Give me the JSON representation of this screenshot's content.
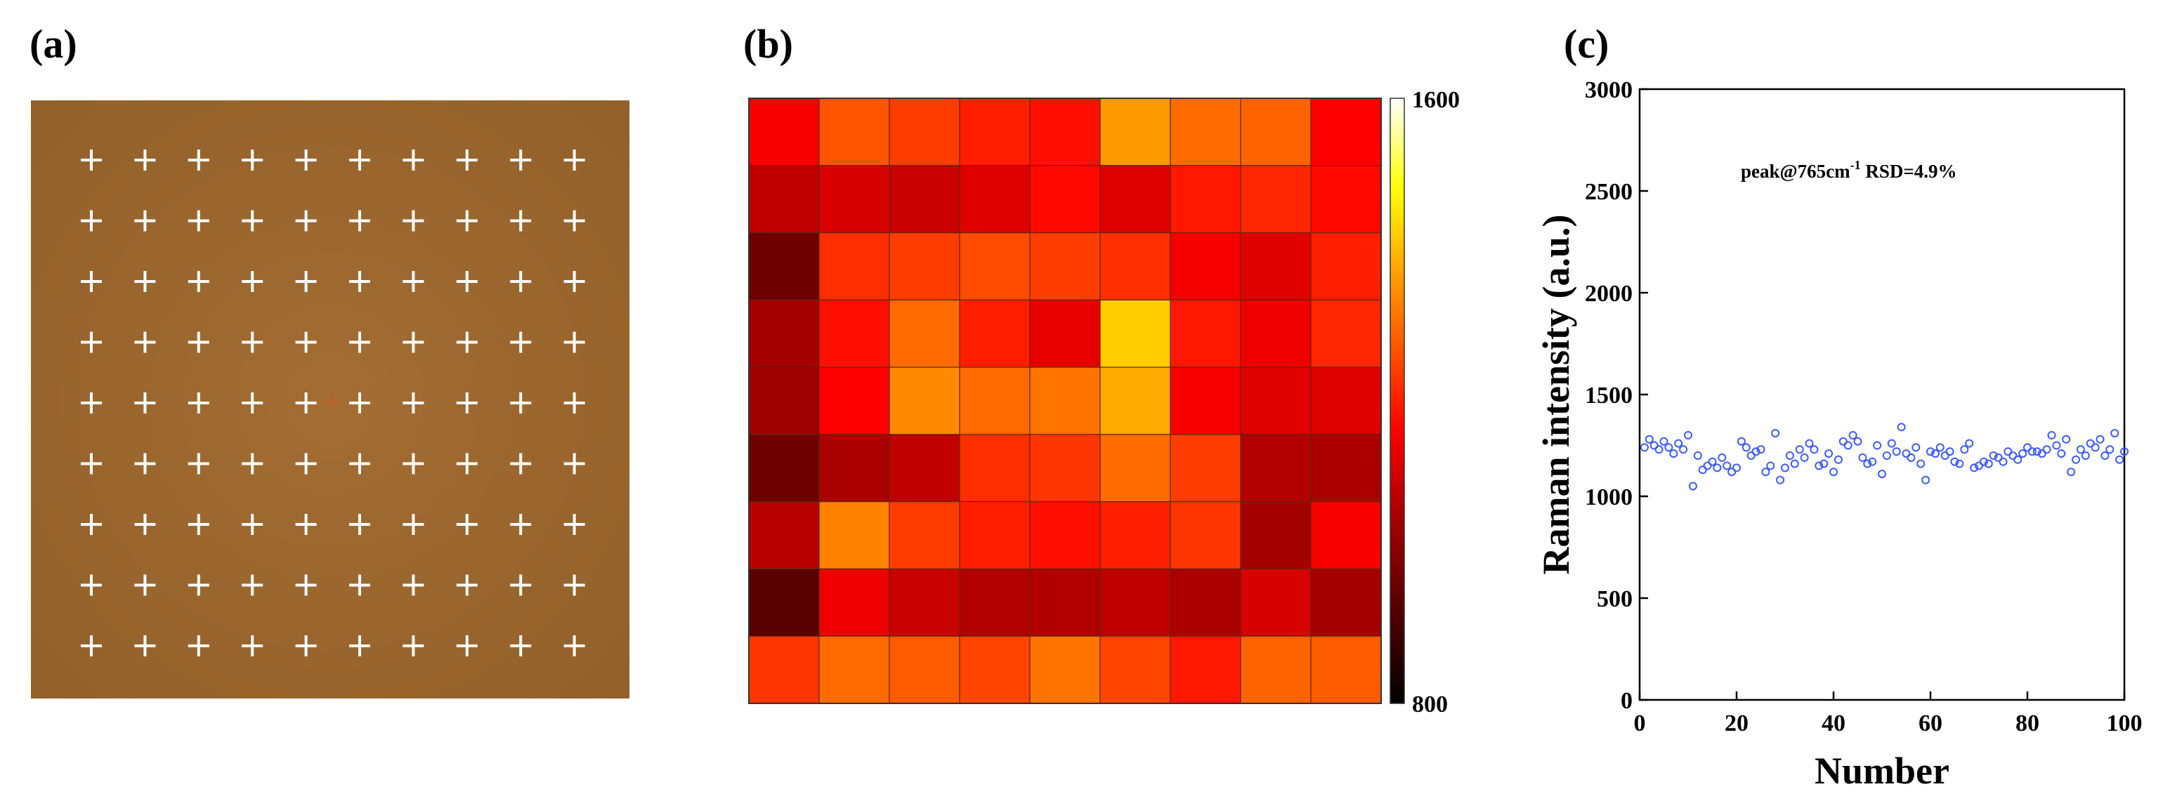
{
  "panels": {
    "a": {
      "label": "(a)"
    },
    "b": {
      "label": "(b)"
    },
    "c": {
      "label": "(c)"
    }
  },
  "colors": {
    "photo_background": "#a06a30",
    "cross_marker": "#ffffff",
    "highlight_cross": "#d0552a",
    "scatter_marker": "#3b5bff"
  },
  "photo_grid": {
    "rows": 9,
    "cols": 10,
    "marker": "+"
  },
  "annotation": {
    "prefix": "peak@765cm",
    "superscript": "-1",
    "suffix": " RSD=4.9%"
  },
  "chart_data": [
    {
      "type": "heatmap",
      "colormap": "hot",
      "colorbar": {
        "min": 800,
        "max": 1600,
        "min_label": "800",
        "max_label": "1600"
      },
      "rows": 9,
      "cols": 9,
      "values": [
        [
          1150,
          1270,
          1240,
          1200,
          1180,
          1360,
          1300,
          1290,
          1160
        ],
        [
          1080,
          1110,
          1090,
          1120,
          1170,
          1120,
          1190,
          1210,
          1170
        ],
        [
          960,
          1220,
          1240,
          1260,
          1240,
          1220,
          1150,
          1120,
          1200
        ],
        [
          1040,
          1180,
          1300,
          1200,
          1130,
          1420,
          1190,
          1140,
          1210
        ],
        [
          1030,
          1160,
          1340,
          1300,
          1310,
          1380,
          1150,
          1120,
          1120
        ],
        [
          960,
          1050,
          1080,
          1220,
          1230,
          1300,
          1240,
          1060,
          1050
        ],
        [
          1070,
          1330,
          1240,
          1200,
          1180,
          1200,
          1230,
          1040,
          1150
        ],
        [
          930,
          1140,
          1090,
          1060,
          1060,
          1080,
          1050,
          1110,
          1040
        ],
        [
          1230,
          1300,
          1280,
          1250,
          1310,
          1250,
          1190,
          1290,
          1280
        ]
      ]
    },
    {
      "type": "scatter",
      "xlabel": "Number",
      "ylabel": "Raman intensity (a.u.)",
      "xlim": [
        0,
        100
      ],
      "ylim": [
        0,
        3000
      ],
      "xticks": [
        0,
        20,
        40,
        60,
        80,
        100
      ],
      "yticks": [
        0,
        500,
        1000,
        1500,
        2000,
        2500,
        3000
      ],
      "marker": "open-circle",
      "x": [
        1,
        2,
        3,
        4,
        5,
        6,
        7,
        8,
        9,
        10,
        11,
        12,
        13,
        14,
        15,
        16,
        17,
        18,
        19,
        20,
        21,
        22,
        23,
        24,
        25,
        26,
        27,
        28,
        29,
        30,
        31,
        32,
        33,
        34,
        35,
        36,
        37,
        38,
        39,
        40,
        41,
        42,
        43,
        44,
        45,
        46,
        47,
        48,
        49,
        50,
        51,
        52,
        53,
        54,
        55,
        56,
        57,
        58,
        59,
        60,
        61,
        62,
        63,
        64,
        65,
        66,
        67,
        68,
        69,
        70,
        71,
        72,
        73,
        74,
        75,
        76,
        77,
        78,
        79,
        80,
        81,
        82,
        83,
        84,
        85,
        86,
        87,
        88,
        89,
        90,
        91,
        92,
        93,
        94,
        95,
        96,
        97,
        98,
        99,
        100
      ],
      "y": [
        1240,
        1280,
        1250,
        1230,
        1270,
        1240,
        1210,
        1260,
        1230,
        1300,
        1050,
        1200,
        1130,
        1150,
        1170,
        1140,
        1190,
        1150,
        1120,
        1140,
        1270,
        1240,
        1200,
        1220,
        1230,
        1120,
        1150,
        1310,
        1080,
        1140,
        1200,
        1160,
        1230,
        1190,
        1260,
        1230,
        1150,
        1160,
        1210,
        1120,
        1180,
        1270,
        1250,
        1300,
        1270,
        1190,
        1160,
        1170,
        1250,
        1110,
        1200,
        1260,
        1220,
        1340,
        1210,
        1190,
        1240,
        1160,
        1080,
        1220,
        1210,
        1240,
        1200,
        1220,
        1170,
        1160,
        1230,
        1260,
        1140,
        1150,
        1170,
        1160,
        1200,
        1190,
        1170,
        1220,
        1200,
        1180,
        1210,
        1240,
        1220,
        1220,
        1210,
        1230,
        1300,
        1250,
        1210,
        1280,
        1120,
        1180,
        1230,
        1200,
        1260,
        1240,
        1280,
        1200,
        1230,
        1310,
        1180,
        1220
      ]
    }
  ]
}
